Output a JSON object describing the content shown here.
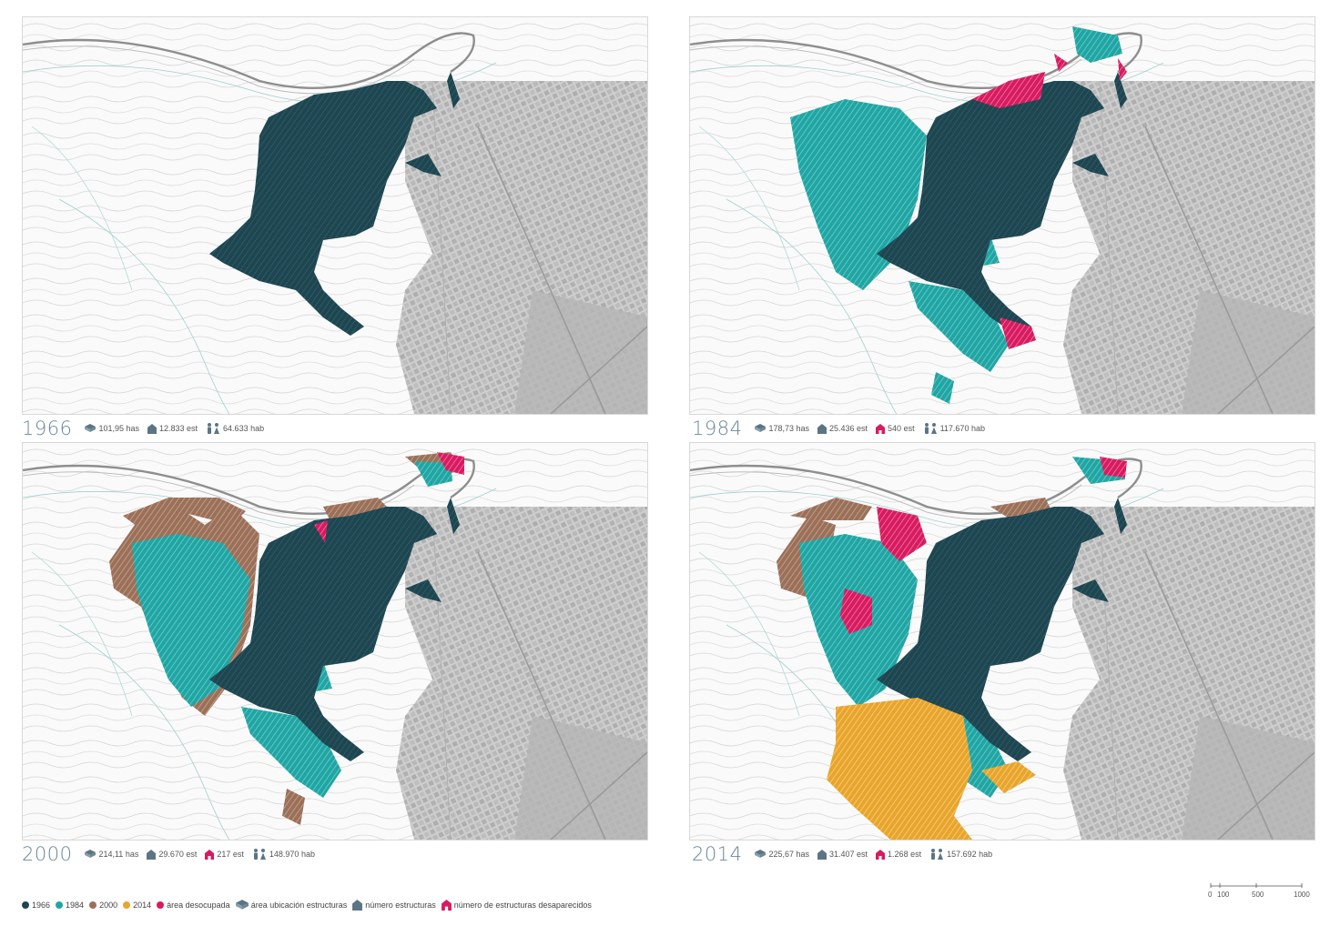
{
  "panels": [
    {
      "year": "1966",
      "stats": {
        "area": "101,95 has",
        "structures": "12.833 est",
        "inhabitants": "64.633 hab"
      }
    },
    {
      "year": "1984",
      "stats": {
        "area": "178,73 has",
        "structures": "25.436 est",
        "vanished": "540 est",
        "inhabitants": "117.670 hab"
      }
    },
    {
      "year": "2000",
      "stats": {
        "area": "214,11 has",
        "structures": "29.670 est",
        "vanished": "217 est",
        "inhabitants": "148.970 hab"
      }
    },
    {
      "year": "2014",
      "stats": {
        "area": "225,67 has",
        "structures": "31.407 est",
        "vanished": "1.268 est",
        "inhabitants": "157.692 hab"
      }
    }
  ],
  "legend": {
    "items": [
      {
        "label": "1966",
        "color": "#1e4651"
      },
      {
        "label": "1984",
        "color": "#1fa6a4"
      },
      {
        "label": "2000",
        "color": "#9b7059"
      },
      {
        "label": "2014",
        "color": "#e8a52a"
      },
      {
        "label": "área desocupada",
        "color": "#d81b60"
      }
    ],
    "symbols": [
      {
        "label": "área ubicación estructuras",
        "icon": "area-icon"
      },
      {
        "label": "número estructuras",
        "icon": "house-icon"
      },
      {
        "label": "número de estructuras desaparecidos",
        "icon": "house-vanished-icon"
      }
    ]
  },
  "scale_bar": {
    "labels": [
      "0",
      "100",
      "500",
      "1000"
    ]
  },
  "colors": {
    "y1966": "#1e4651",
    "y1984": "#1fa6a4",
    "y2000": "#9b7059",
    "y2014": "#e8a52a",
    "vacated": "#d81b60",
    "icon": "#5b7585"
  }
}
